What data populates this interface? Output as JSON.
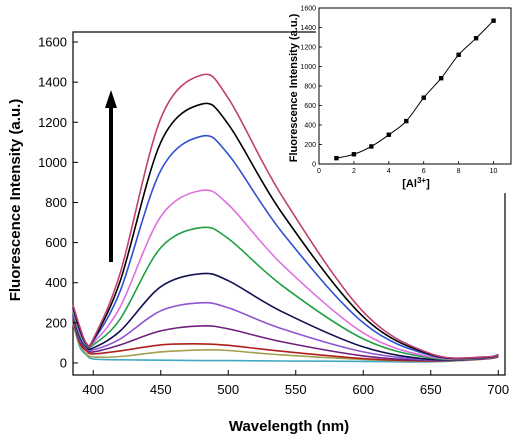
{
  "chart_data": [
    {
      "type": "line",
      "xlabel": "Wavelength (nm)",
      "ylabel": "Fluorescence Intensity (a.u.)",
      "xlim": [
        385,
        705
      ],
      "ylim": [
        -60,
        1650
      ],
      "xticks": [
        400,
        450,
        500,
        550,
        600,
        650,
        700
      ],
      "yticks": [
        0,
        200,
        400,
        600,
        800,
        1000,
        1200,
        1400,
        1600
      ],
      "annotation": "upward arrow indicating increasing intensity",
      "series": [
        {
          "color": "#40a8c0",
          "x": [
            385,
            390,
            395,
            400,
            420,
            450,
            480,
            500,
            540,
            600,
            650,
            690,
            700
          ],
          "y": [
            200,
            80,
            40,
            20,
            16,
            14,
            12,
            12,
            10,
            8,
            6,
            20,
            30
          ]
        },
        {
          "color": "#a0a050",
          "x": [
            385,
            390,
            395,
            400,
            420,
            450,
            480,
            500,
            540,
            600,
            650,
            690,
            700
          ],
          "y": [
            200,
            90,
            45,
            30,
            32,
            55,
            65,
            62,
            40,
            18,
            8,
            20,
            30
          ]
        },
        {
          "color": "#b02020",
          "x": [
            385,
            390,
            395,
            400,
            420,
            450,
            480,
            500,
            540,
            600,
            650,
            690,
            700
          ],
          "y": [
            210,
            100,
            60,
            45,
            60,
            90,
            95,
            88,
            58,
            22,
            10,
            20,
            30
          ]
        },
        {
          "color": "#702080",
          "x": [
            385,
            390,
            395,
            400,
            420,
            450,
            480,
            500,
            540,
            600,
            650,
            690,
            700
          ],
          "y": [
            220,
            110,
            70,
            55,
            90,
            160,
            185,
            170,
            105,
            35,
            12,
            22,
            32
          ]
        },
        {
          "color": "#9055d0",
          "x": [
            385,
            390,
            395,
            400,
            420,
            450,
            480,
            500,
            540,
            600,
            650,
            690,
            700
          ],
          "y": [
            230,
            120,
            75,
            65,
            120,
            260,
            300,
            275,
            170,
            55,
            15,
            22,
            32
          ]
        },
        {
          "color": "#101050",
          "x": [
            385,
            390,
            395,
            400,
            420,
            450,
            480,
            500,
            540,
            600,
            650,
            690,
            700
          ],
          "y": [
            240,
            130,
            80,
            75,
            160,
            380,
            445,
            410,
            255,
            80,
            18,
            24,
            34
          ]
        },
        {
          "color": "#20a040",
          "x": [
            385,
            390,
            395,
            400,
            420,
            450,
            480,
            500,
            540,
            600,
            650,
            690,
            700
          ],
          "y": [
            250,
            140,
            85,
            90,
            220,
            575,
            675,
            620,
            385,
            120,
            25,
            25,
            35
          ]
        },
        {
          "color": "#e070e0",
          "x": [
            385,
            390,
            395,
            400,
            420,
            450,
            480,
            500,
            540,
            600,
            650,
            690,
            700
          ],
          "y": [
            260,
            150,
            90,
            100,
            280,
            730,
            860,
            790,
            490,
            150,
            30,
            26,
            36
          ]
        },
        {
          "color": "#3050d0",
          "x": [
            385,
            390,
            395,
            400,
            420,
            450,
            480,
            500,
            540,
            600,
            650,
            690,
            700
          ],
          "y": [
            270,
            160,
            92,
            110,
            360,
            960,
            1130,
            1040,
            650,
            200,
            38,
            28,
            38
          ]
        },
        {
          "color": "#000000",
          "x": [
            385,
            390,
            395,
            400,
            420,
            450,
            480,
            500,
            540,
            600,
            650,
            690,
            700
          ],
          "y": [
            280,
            170,
            95,
            115,
            410,
            1100,
            1290,
            1190,
            745,
            230,
            42,
            28,
            40
          ]
        },
        {
          "color": "#c04070",
          "x": [
            385,
            390,
            395,
            400,
            420,
            450,
            480,
            500,
            540,
            600,
            650,
            690,
            700
          ],
          "y": [
            290,
            180,
            98,
            120,
            450,
            1220,
            1435,
            1320,
            830,
            255,
            46,
            30,
            42
          ]
        }
      ]
    },
    {
      "type": "scatter",
      "xlabel": "[Al",
      "xlabel_sup": "3+",
      "xlabel_end": "]",
      "ylabel": "Fluorescence Intensity (a.u.)",
      "xlim": [
        0,
        11
      ],
      "ylim": [
        0,
        1600
      ],
      "xticks": [
        0,
        2,
        4,
        6,
        8,
        10
      ],
      "yticks": [
        0,
        200,
        400,
        600,
        800,
        1000,
        1200,
        1400,
        1600
      ],
      "fit_line": true,
      "x": [
        1,
        2,
        3,
        4,
        5,
        6,
        7,
        8,
        9,
        10
      ],
      "y": [
        60,
        100,
        180,
        300,
        440,
        680,
        880,
        1120,
        1290,
        1470
      ]
    }
  ]
}
